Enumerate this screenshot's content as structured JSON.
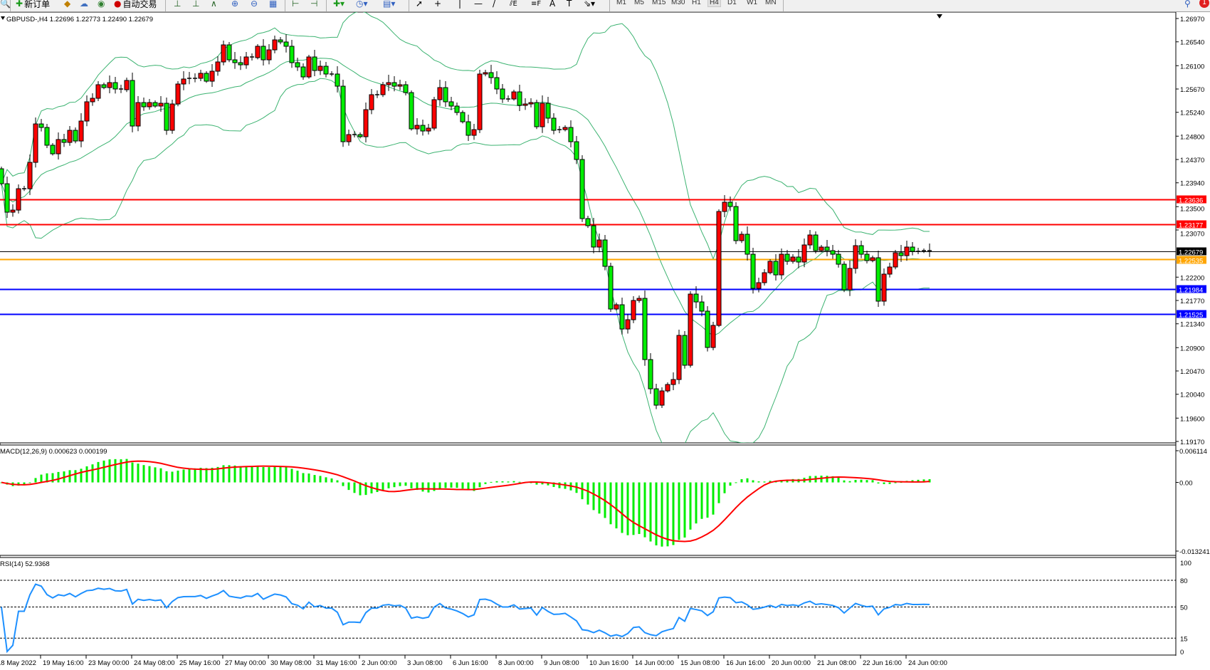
{
  "toolbar": {
    "new_order_label": "新订单",
    "auto_trading_label": "自动交易",
    "timeframes": [
      "M1",
      "M5",
      "M15",
      "M30",
      "H1",
      "H4",
      "D1",
      "W1",
      "MN"
    ],
    "active_timeframe": "H4",
    "notification_count": "1",
    "icons": [
      "zoom-icon",
      "new-order-icon",
      "market-watch-icon",
      "data-window-icon",
      "signal-icon",
      "auto-trading-icon",
      "bar-chart-icon",
      "candlestick-icon",
      "line-chart-icon",
      "zoom-in-icon",
      "zoom-out-icon",
      "tile-windows-icon",
      "autoscroll-icon",
      "chart-shift-icon",
      "indicators-icon",
      "periods-icon",
      "templates-icon",
      "cursor-icon",
      "crosshair-icon",
      "vertical-line-icon",
      "horizontal-line-icon",
      "trendline-icon",
      "equidistant-channel-icon",
      "fibonacci-icon",
      "text-icon",
      "text-label-icon",
      "arrows-icon",
      "search-icon",
      "notification-icon"
    ]
  },
  "chart": {
    "header": "GBPUSD-,H4  1.22696 1.22773 1.22490 1.22679",
    "symbol": "GBPUSD-",
    "timeframe": "H4",
    "ohlc_last": {
      "open": 1.22696,
      "high": 1.22773,
      "low": 1.2249,
      "close": 1.22679
    },
    "colors": {
      "bull_candle": "#ff0000",
      "bear_candle": "#00ee00",
      "bands": "#3cb371",
      "macd_hist": "#00ee00",
      "macd_signal": "#ff0000",
      "rsi": "#1e90ff"
    }
  },
  "chart_data": {
    "type": "candlestick",
    "first_open": 1.24199,
    "closes": [
      1.23923,
      1.23398,
      1.23437,
      1.23831,
      1.23831,
      1.24317,
      1.25026,
      1.24961,
      1.24633,
      1.24475,
      1.24738,
      1.24685,
      1.24908,
      1.24711,
      1.25079,
      1.25434,
      1.25499,
      1.25749,
      1.25696,
      1.25788,
      1.2567,
      1.25657,
      1.25828,
      1.24987,
      1.2542,
      1.25342,
      1.2542,
      1.25355,
      1.25407,
      1.24908,
      1.25394,
      1.25762,
      1.25854,
      1.25867,
      1.25867,
      1.25959,
      1.25814,
      1.25998,
      1.26169,
      1.26484,
      1.26208,
      1.26156,
      1.26116,
      1.26261,
      1.26248,
      1.26458,
      1.26208,
      1.26392,
      1.26576,
      1.26537,
      1.26458,
      1.26156,
      1.26077,
      1.25893,
      1.26261,
      1.26011,
      1.2609,
      1.25946,
      1.25946,
      1.25722,
      1.24698,
      1.24829,
      1.24829,
      1.2479,
      1.25289,
      1.25565,
      1.25565,
      1.25749,
      1.25788,
      1.25722,
      1.25749,
      1.25604,
      1.24935,
      1.25,
      1.24895,
      1.24948,
      1.25473,
      1.25696,
      1.25434,
      1.25355,
      1.25237,
      1.25066,
      1.24816,
      1.24921,
      1.25946,
      1.25972,
      1.2588,
      1.2567,
      1.25486,
      1.25486,
      1.25617,
      1.25368,
      1.25394,
      1.2542,
      1.24974,
      1.25407,
      1.25132,
      1.24908,
      1.24921,
      1.24961,
      1.24698,
      1.2437,
      1.2328,
      1.23149,
      1.22755,
      1.22886,
      1.224,
      1.21612,
      1.21691,
      1.21244,
      1.21415,
      1.2177,
      1.21809,
      1.2068,
      1.20141,
      1.19839,
      1.20102,
      1.2022,
      1.20312,
      1.21126,
      1.20575,
      1.21888,
      1.21743,
      1.21573,
      1.20903,
      1.2131,
      1.23411,
      1.23582,
      1.23503,
      1.22873,
      1.22991,
      1.22623,
      1.21993,
      1.22098,
      1.22282,
      1.22492,
      1.22242,
      1.22623,
      1.22492,
      1.22571,
      1.22479,
      1.22794,
      1.22978,
      1.22689,
      1.22755,
      1.22689,
      1.22623,
      1.22439,
      1.21967,
      1.22361,
      1.22781,
      1.22623,
      1.22505,
      1.22558,
      1.21757,
      1.22256,
      1.22387,
      1.2265,
      1.22597,
      1.22755,
      1.22676,
      1.22676,
      1.22689,
      1.22679
    ],
    "price_axis": {
      "range": [
        1.1917,
        1.2697
      ],
      "ticks": [
        "1.26970",
        "1.26540",
        "1.26100",
        "1.25670",
        "1.25240",
        "1.24800",
        "1.24370",
        "1.23940",
        "1.23500",
        "1.23070",
        "1.22200",
        "1.21770",
        "1.21340",
        "1.20900",
        "1.20470",
        "1.20040",
        "1.19600",
        "1.19170"
      ]
    },
    "time_axis": [
      "18 May 2022",
      "19 May 16:00",
      "23 May 00:00",
      "24 May 08:00",
      "25 May 16:00",
      "27 May 00:00",
      "30 May 08:00",
      "31 May 16:00",
      "2 Jun 00:00",
      "3 Jun 08:00",
      "6 Jun 16:00",
      "8 Jun 00:00",
      "9 Jun 08:00",
      "10 Jun 16:00",
      "14 Jun 00:00",
      "15 Jun 08:00",
      "16 Jun 16:00",
      "20 Jun 00:00",
      "21 Jun 08:00",
      "22 Jun 16:00",
      "24 Jun 00:00"
    ],
    "horizontal_lines": [
      {
        "price": "1.23636",
        "color": "#ff0000"
      },
      {
        "price": "1.23177",
        "color": "#ff0000"
      },
      {
        "price": "1.22679",
        "color": "#000000"
      },
      {
        "price": "1.22535",
        "color": "#ffa500"
      },
      {
        "price": "1.21984",
        "color": "#0000ff"
      },
      {
        "price": "1.21525",
        "color": "#0000ff"
      }
    ],
    "bollinger_bands": {
      "period": 20,
      "deviation": 2
    },
    "macd": {
      "label": "MACD(12,26,9) 0.000623 0.000199",
      "fast": 12,
      "slow": 26,
      "signal": 9,
      "axis_ticks": [
        "0.006114",
        "0.00",
        "-0.013241"
      ],
      "range": [
        -0.013241,
        0.006114
      ]
    },
    "rsi": {
      "label": "RSI(14) 52.9368",
      "period": 14,
      "levels": [
        80,
        50,
        15
      ],
      "axis_ticks": [
        "100",
        "80",
        "50",
        "15",
        "0"
      ],
      "range": [
        0,
        100
      ]
    }
  }
}
